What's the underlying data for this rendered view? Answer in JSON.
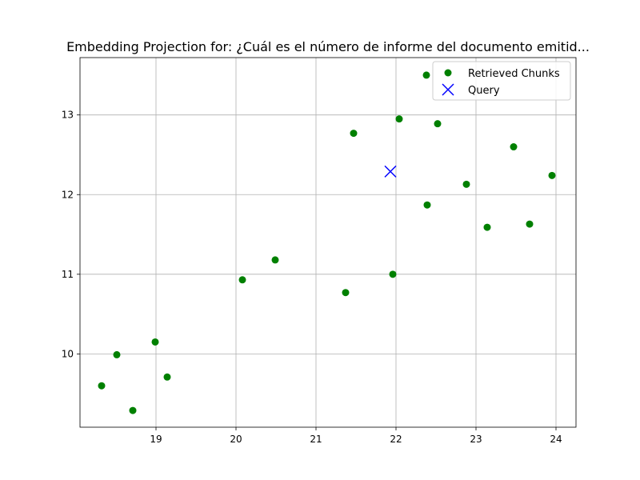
{
  "chart_data": {
    "type": "scatter",
    "title": "Embedding Projection for: ¿Cuál es el número de informe del documento emitid...",
    "xlabel": "",
    "ylabel": "",
    "xlim": [
      18.05,
      24.25
    ],
    "ylim": [
      9.08,
      13.72
    ],
    "xticks": [
      19,
      20,
      21,
      22,
      23,
      24
    ],
    "yticks": [
      10,
      11,
      12,
      13
    ],
    "grid": true,
    "legend_position": "upper right",
    "series": [
      {
        "name": "Retrieved Chunks",
        "marker": "circle",
        "color": "#008000",
        "points": [
          [
            18.32,
            9.6
          ],
          [
            18.51,
            9.99
          ],
          [
            18.71,
            9.29
          ],
          [
            18.99,
            10.15
          ],
          [
            19.14,
            9.71
          ],
          [
            20.08,
            10.93
          ],
          [
            20.49,
            11.18
          ],
          [
            21.37,
            10.77
          ],
          [
            21.47,
            12.77
          ],
          [
            21.96,
            11.0
          ],
          [
            22.04,
            12.95
          ],
          [
            22.38,
            13.5
          ],
          [
            22.39,
            11.87
          ],
          [
            22.52,
            12.89
          ],
          [
            22.88,
            12.13
          ],
          [
            23.14,
            11.59
          ],
          [
            23.47,
            12.6
          ],
          [
            23.67,
            11.63
          ],
          [
            23.95,
            12.24
          ]
        ]
      },
      {
        "name": "Query",
        "marker": "x",
        "color": "#0000ff",
        "points": [
          [
            21.93,
            12.29
          ]
        ]
      }
    ]
  }
}
